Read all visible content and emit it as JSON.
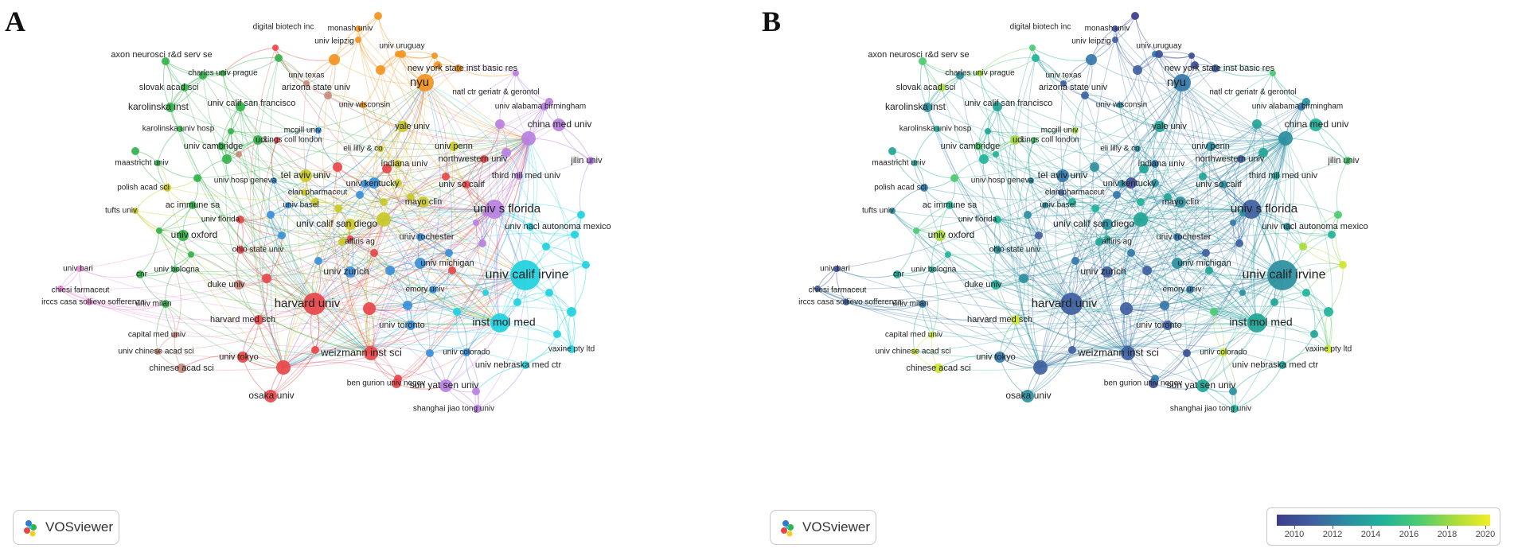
{
  "panels": [
    {
      "id": "a",
      "letter": "A",
      "badge": "VOSviewer"
    },
    {
      "id": "b",
      "letter": "B",
      "badge": "VOSviewer"
    }
  ],
  "colorbar": {
    "ticks": [
      "2010",
      "2012",
      "2014",
      "2016",
      "2018",
      "2020"
    ]
  },
  "cluster_colors": {
    "red": "#e8474a",
    "green": "#33b24a",
    "blue": "#3a8fd9",
    "yellow": "#c9c928",
    "purple": "#b980e0",
    "cyan": "#1fd1e0",
    "orange": "#f29421",
    "brown": "#c98a7a",
    "pink": "#e98bd6"
  },
  "nodes": [
    {
      "label": "digital biotech inc",
      "c": "red",
      "yr": 2017
    },
    {
      "label": "monash univ",
      "c": "orange",
      "yr": 2011
    },
    {
      "label": "univ leipzig",
      "c": "orange",
      "yr": 2012
    },
    {
      "label": "axon neurosci r&d serv se",
      "c": "green",
      "yr": 2017
    },
    {
      "label": "charles univ prague",
      "c": "green",
      "yr": 2018
    },
    {
      "label": "univ texas",
      "c": "brown",
      "yr": 2012
    },
    {
      "label": "univ uruguay",
      "c": "orange",
      "yr": 2013
    },
    {
      "label": "new york state inst basic res",
      "c": "orange",
      "yr": 2012
    },
    {
      "label": "slovak acad sci",
      "c": "green",
      "yr": 2018
    },
    {
      "label": "arizona state univ",
      "c": "brown",
      "yr": 2012
    },
    {
      "label": "nyu",
      "c": "orange",
      "yr": 2013
    },
    {
      "label": "natl ctr geriatr & gerontol",
      "c": "purple",
      "yr": 2017
    },
    {
      "label": "karolinska inst",
      "c": "green",
      "yr": 2014
    },
    {
      "label": "univ calif san francisco",
      "c": "green",
      "yr": 2015
    },
    {
      "label": "univ wisconsin",
      "c": "orange",
      "yr": 2014
    },
    {
      "label": "univ alabama birmingham",
      "c": "purple",
      "yr": 2013
    },
    {
      "label": "karolinska univ hosp",
      "c": "green",
      "yr": 2015
    },
    {
      "label": "mcgill univ",
      "c": "blue",
      "yr": 2018
    },
    {
      "label": "yale univ",
      "c": "yellow",
      "yr": 2015
    },
    {
      "label": "china med univ",
      "c": "purple",
      "yr": 2016
    },
    {
      "label": "univ cambridge",
      "c": "green",
      "yr": 2017
    },
    {
      "label": "ucl",
      "c": "green",
      "yr": 2018
    },
    {
      "label": "kings coll london",
      "c": "red",
      "yr": 2017
    },
    {
      "label": "eli lilly & co",
      "c": "yellow",
      "yr": 2014
    },
    {
      "label": "univ penn",
      "c": "yellow",
      "yr": 2014
    },
    {
      "label": "maastricht univ",
      "c": "green",
      "yr": 2015
    },
    {
      "label": "northwestern univ",
      "c": "red",
      "yr": 2012
    },
    {
      "label": "indiana univ",
      "c": "yellow",
      "yr": 2013
    },
    {
      "label": "jilin univ",
      "c": "purple",
      "yr": 2017
    },
    {
      "label": "tel aviv univ",
      "c": "yellow",
      "yr": 2013
    },
    {
      "label": "third mil med univ",
      "c": "purple",
      "yr": 2015
    },
    {
      "label": "polish acad sci",
      "c": "yellow",
      "yr": 2013
    },
    {
      "label": "univ hosp geneva",
      "c": "blue",
      "yr": 2014
    },
    {
      "label": "elan pharmaceut",
      "c": "yellow",
      "yr": 2012
    },
    {
      "label": "univ kentucky",
      "c": "blue",
      "yr": 2014
    },
    {
      "label": "univ so calif",
      "c": "red",
      "yr": 2014
    },
    {
      "label": "ac immune sa",
      "c": "green",
      "yr": 2016
    },
    {
      "label": "univ basel",
      "c": "blue",
      "yr": 2014
    },
    {
      "label": "mayo clin",
      "c": "yellow",
      "yr": 2014
    },
    {
      "label": "univ s florida",
      "c": "purple",
      "yr": 2012
    },
    {
      "label": "tufts univ",
      "c": "yellow",
      "yr": 2014
    },
    {
      "label": "univ florida",
      "c": "red",
      "yr": 2016
    },
    {
      "label": "univ calif san diego",
      "c": "yellow",
      "yr": 2014
    },
    {
      "label": "univ nacl autonoma mexico",
      "c": "cyan",
      "yr": 2014
    },
    {
      "label": "univ oxford",
      "c": "green",
      "yr": 2018
    },
    {
      "label": "affiris ag",
      "c": "yellow",
      "yr": 2015
    },
    {
      "label": "univ rochester",
      "c": "blue",
      "yr": 2013
    },
    {
      "label": "ohio state univ",
      "c": "red",
      "yr": 2014
    },
    {
      "label": "univ bari",
      "c": "pink",
      "yr": 2011
    },
    {
      "label": "univ michigan",
      "c": "blue",
      "yr": 2014
    },
    {
      "label": "cnr",
      "c": "green",
      "yr": 2015
    },
    {
      "label": "univ bologna",
      "c": "green",
      "yr": 2015
    },
    {
      "label": "univ zurich",
      "c": "blue",
      "yr": 2012
    },
    {
      "label": "univ calif irvine",
      "c": "cyan",
      "yr": 2014
    },
    {
      "label": "chiesi farmaceut",
      "c": "pink",
      "yr": 2012
    },
    {
      "label": "duke univ",
      "c": "brown",
      "yr": 2016
    },
    {
      "label": "irccs casa sollievo sofferenza",
      "c": "pink",
      "yr": 2012
    },
    {
      "label": "emory univ",
      "c": "blue",
      "yr": 2013
    },
    {
      "label": "univ milan",
      "c": "green",
      "yr": 2013
    },
    {
      "label": "harvard univ",
      "c": "red",
      "yr": 2012
    },
    {
      "label": "harvard med sch",
      "c": "red",
      "yr": 2019
    },
    {
      "label": "univ toronto",
      "c": "blue",
      "yr": 2012
    },
    {
      "label": "inst mol med",
      "c": "cyan",
      "yr": 2015
    },
    {
      "label": "capital med univ",
      "c": "brown",
      "yr": 2019
    },
    {
      "label": "vaxine pty ltd",
      "c": "cyan",
      "yr": 2019
    },
    {
      "label": "univ chinese acad sci",
      "c": "brown",
      "yr": 2019
    },
    {
      "label": "weizmann inst sci",
      "c": "red",
      "yr": 2012
    },
    {
      "label": "univ colorado",
      "c": "blue",
      "yr": 2019
    },
    {
      "label": "univ tokyo",
      "c": "red",
      "yr": 2013
    },
    {
      "label": "univ nebraska med ctr",
      "c": "cyan",
      "yr": 2015
    },
    {
      "label": "chinese acad sci",
      "c": "brown",
      "yr": 2019
    },
    {
      "label": "sun yat sen univ",
      "c": "purple",
      "yr": 2015
    },
    {
      "label": "osaka univ",
      "c": "red",
      "yr": 2014
    },
    {
      "label": "ben gurion univ negev",
      "c": "red",
      "yr": 2011
    },
    {
      "label": "shanghai jiao tong univ",
      "c": "purple",
      "yr": 2016
    }
  ]
}
